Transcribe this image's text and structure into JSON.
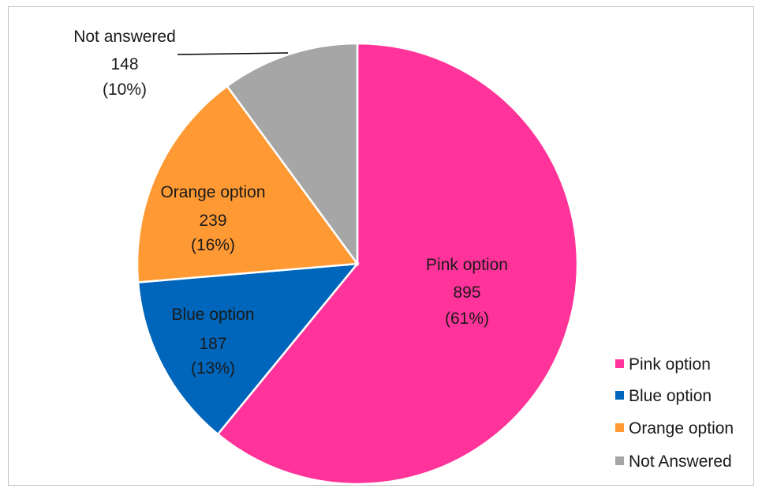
{
  "chart_data": {
    "type": "pie",
    "categories": [
      "Pink option",
      "Blue option",
      "Orange option",
      "Not answered"
    ],
    "values": [
      895,
      187,
      239,
      148
    ],
    "percent_labels": [
      "(61%)",
      "(13%)",
      "(16%)",
      "(10%)"
    ],
    "value_labels": [
      "895",
      "187",
      "239",
      "148"
    ],
    "colors": [
      "#ff3399",
      "#0066bb",
      "#ff9933",
      "#a6a6a6"
    ],
    "legend": [
      "Pink option",
      "Blue option",
      "Orange option",
      "Not Answered"
    ],
    "legend_position": "bottom-right"
  }
}
